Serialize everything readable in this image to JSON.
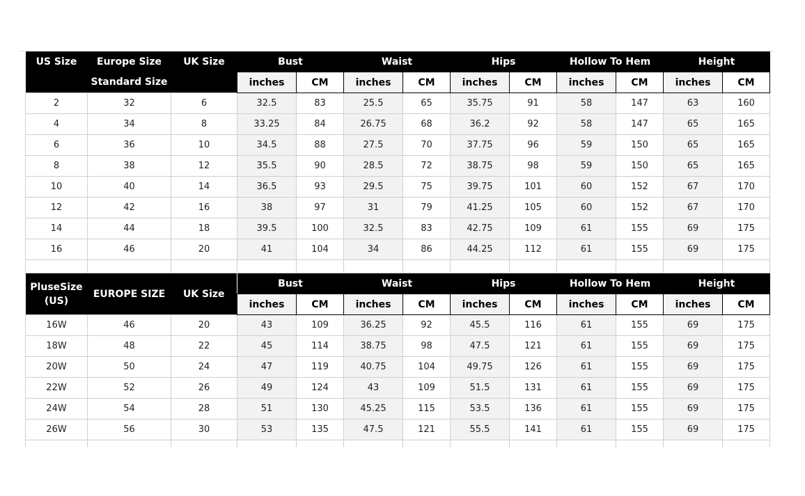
{
  "standard": {
    "headers": {
      "us": "US Size",
      "europe": "Europe Size",
      "europe2": "Standard Size",
      "uk": "UK Size"
    },
    "rows": [
      [
        "2",
        "32",
        "6",
        "32.5",
        "83",
        "25.5",
        "65",
        "35.75",
        "91",
        "58",
        "147",
        "63",
        "160"
      ],
      [
        "4",
        "34",
        "8",
        "33.25",
        "84",
        "26.75",
        "68",
        "36.2",
        "92",
        "58",
        "147",
        "65",
        "165"
      ],
      [
        "6",
        "36",
        "10",
        "34.5",
        "88",
        "27.5",
        "70",
        "37.75",
        "96",
        "59",
        "150",
        "65",
        "165"
      ],
      [
        "8",
        "38",
        "12",
        "35.5",
        "90",
        "28.5",
        "72",
        "38.75",
        "98",
        "59",
        "150",
        "65",
        "165"
      ],
      [
        "10",
        "40",
        "14",
        "36.5",
        "93",
        "29.5",
        "75",
        "39.75",
        "101",
        "60",
        "152",
        "67",
        "170"
      ],
      [
        "12",
        "42",
        "16",
        "38",
        "97",
        "31",
        "79",
        "41.25",
        "105",
        "60",
        "152",
        "67",
        "170"
      ],
      [
        "14",
        "44",
        "18",
        "39.5",
        "100",
        "32.5",
        "83",
        "42.75",
        "109",
        "61",
        "155",
        "69",
        "175"
      ],
      [
        "16",
        "46",
        "20",
        "41",
        "104",
        "34",
        "86",
        "44.25",
        "112",
        "61",
        "155",
        "69",
        "175"
      ]
    ]
  },
  "plus": {
    "headers": {
      "us": "PluseSize (US)",
      "europe": "EUROPE SIZE",
      "uk": "UK Size"
    },
    "rows": [
      [
        "16W",
        "46",
        "20",
        "43",
        "109",
        "36.25",
        "92",
        "45.5",
        "116",
        "61",
        "155",
        "69",
        "175"
      ],
      [
        "18W",
        "48",
        "22",
        "45",
        "114",
        "38.75",
        "98",
        "47.5",
        "121",
        "61",
        "155",
        "69",
        "175"
      ],
      [
        "20W",
        "50",
        "24",
        "47",
        "119",
        "40.75",
        "104",
        "49.75",
        "126",
        "61",
        "155",
        "69",
        "175"
      ],
      [
        "22W",
        "52",
        "26",
        "49",
        "124",
        "43",
        "109",
        "51.5",
        "131",
        "61",
        "155",
        "69",
        "175"
      ],
      [
        "24W",
        "54",
        "28",
        "51",
        "130",
        "45.25",
        "115",
        "53.5",
        "136",
        "61",
        "155",
        "69",
        "175"
      ],
      [
        "26W",
        "56",
        "30",
        "53",
        "135",
        "47.5",
        "121",
        "55.5",
        "141",
        "61",
        "155",
        "69",
        "175"
      ]
    ]
  },
  "measures": [
    "Bust",
    "Waist",
    "Hips",
    "Hollow To Hem",
    "Height"
  ],
  "units": {
    "inches": "inches",
    "cm": "CM"
  }
}
